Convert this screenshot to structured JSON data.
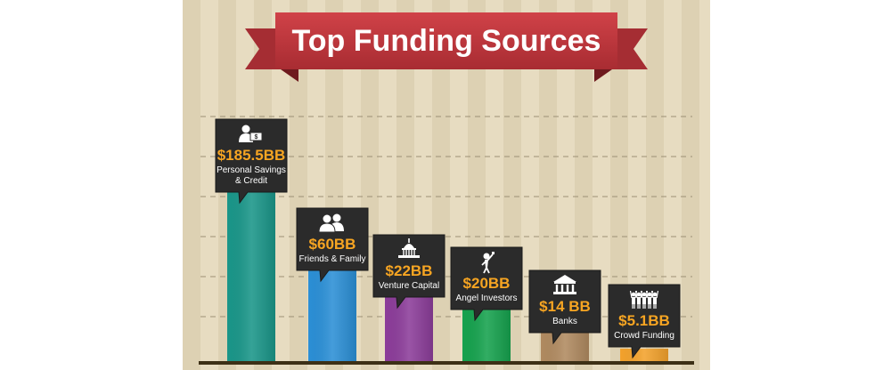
{
  "chart_data": {
    "type": "bar",
    "title": "Top Funding Sources",
    "unit": "BB",
    "categories": [
      "Personal Savings & Credit",
      "Friends & Family",
      "Venture Capital",
      "Angel Investors",
      "Banks",
      "Crowd Funding"
    ],
    "category_lines": [
      [
        "Personal Savings",
        "& Credit"
      ],
      [
        "Friends & Family"
      ],
      [
        "Venture Capital"
      ],
      [
        "Angel Investors"
      ],
      [
        "Banks"
      ],
      [
        "Crowd Funding"
      ]
    ],
    "values": [
      185.5,
      60,
      22,
      20,
      14,
      5.1
    ],
    "value_labels": [
      "$185.5BB",
      "$60BB",
      "$22BB",
      "$20BB",
      "$14 BB",
      "$5.1BB"
    ],
    "icons": [
      "person-money-icon",
      "two-people-icon",
      "capitol-dome-icon",
      "person-celebrating-icon",
      "bank-building-icon",
      "crowd-icon"
    ],
    "colors": [
      "#1a9689",
      "#2b8fd6",
      "#8c3d9a",
      "#16a24e",
      "#b08a60",
      "#f3a22c"
    ],
    "label_bg": "#2b2b2b",
    "value_color": "#f7a522",
    "ribbon_color": "#c0393e",
    "grid": "dashed"
  }
}
